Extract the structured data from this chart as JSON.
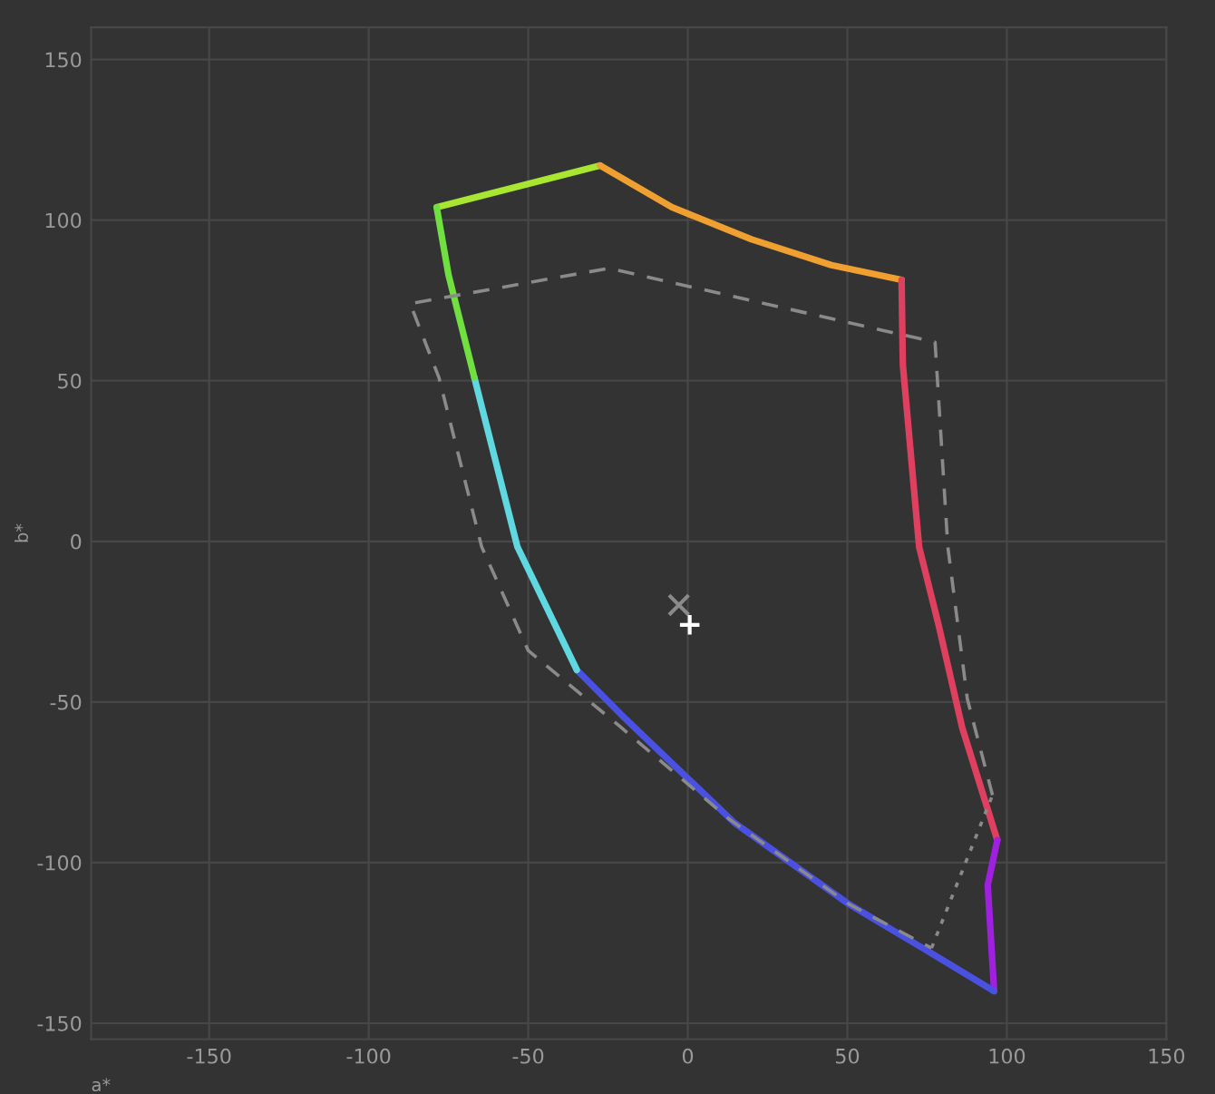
{
  "chart_data": {
    "type": "line",
    "xlabel": "a*",
    "ylabel": "b*",
    "xlim": [
      -187,
      150
    ],
    "ylim": [
      -155,
      160
    ],
    "xticks": [
      -150,
      -100,
      -50,
      0,
      50,
      100,
      150
    ],
    "yticks": [
      -150,
      -100,
      -50,
      0,
      50,
      100,
      150
    ],
    "grid": true,
    "line_style": "solid",
    "series": [
      {
        "color": "#a8e632",
        "x": [
          -78.7,
          -27.5
        ],
        "values": [
          104,
          117
        ]
      },
      {
        "color": "#f0a030",
        "x": [
          -27.5,
          -5,
          20,
          45,
          67
        ],
        "values": [
          117,
          104,
          94,
          86,
          81.4
        ]
      },
      {
        "color": "#e04060",
        "x": [
          67,
          67.4,
          72.5,
          78.6,
          86,
          97
        ],
        "values": [
          81.4,
          55,
          -1.7,
          -26,
          -58,
          -93
        ]
      },
      {
        "color": "#a020e0",
        "x": [
          97,
          94,
          96
        ],
        "values": [
          -93,
          -107,
          -140
        ]
      },
      {
        "color": "#4a50e0",
        "x": [
          96,
          76,
          50.6,
          14.6,
          -20.8,
          -34.8
        ],
        "values": [
          -140,
          -128,
          -113,
          -87.6,
          -54,
          -40
        ]
      },
      {
        "color": "#60d8e0",
        "x": [
          -34.8,
          -53.4,
          -66.9
        ],
        "values": [
          -40,
          -1.7,
          51
        ]
      },
      {
        "color": "#70e040",
        "x": [
          -66.9,
          -75,
          -78.7
        ],
        "values": [
          51,
          83,
          104
        ]
      },
      {
        "color": "#8a8a8a",
        "line_style": "dashed",
        "x": [
          95.5,
          87.6,
          81.5,
          77.5,
          -24.7,
          -87,
          -78,
          -64.6,
          -50,
          -33,
          -20.8,
          12.9,
          50.6,
          76.4
        ],
        "values": [
          -79,
          -49,
          -1.7,
          62,
          85,
          74,
          51,
          -1.7,
          -34,
          -48,
          -58,
          -86.4,
          -113,
          -126.6
        ]
      },
      {
        "color": "#8a8a8a",
        "line_style": "dotted",
        "x": [
          76.4,
          95.5
        ],
        "values": [
          -126.6,
          -79
        ]
      },
      {
        "type": "scatter",
        "marker": "cross",
        "color": "#8a8a8a",
        "x": [
          -2.8
        ],
        "values": [
          -19.8
        ]
      },
      {
        "type": "scatter",
        "marker": "plus",
        "color": "#ffffff",
        "x": [
          0.6
        ],
        "values": [
          -26
        ]
      }
    ]
  }
}
